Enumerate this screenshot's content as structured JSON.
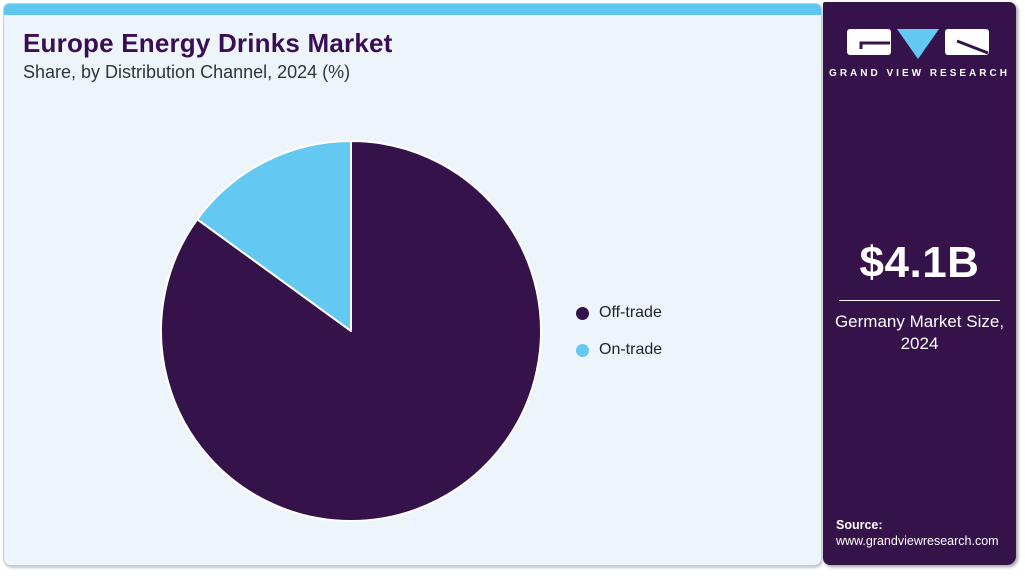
{
  "header": {
    "title": "Europe Energy Drinks Market",
    "subtitle": "Share, by Distribution Channel, 2024 (%)"
  },
  "chart_data": {
    "type": "pie",
    "title": "Europe Energy Drinks Market Share, by Distribution Channel, 2024 (%)",
    "unit": "%",
    "slices": [
      {
        "label": "Off-trade",
        "value": 85,
        "color": "#36124b"
      },
      {
        "label": "On-trade",
        "value": 15,
        "color": "#63c9f2"
      }
    ],
    "start_angle_deg": 0,
    "direction": "clockwise",
    "legend_position": "right",
    "data_labels": false
  },
  "sidebar": {
    "logo_text": "GRAND VIEW RESEARCH",
    "metric_value": "$4.1B",
    "metric_caption": "Germany Market Size, 2024",
    "source_label": "Source:",
    "source_url": "www.grandviewresearch.com"
  },
  "colors": {
    "accent_bar": "#5ec7f1",
    "card_bg": "#eef5fa",
    "card_border": "#c7ced4",
    "title": "#3a0e55",
    "subtitle": "#33343a",
    "sidebar_bg": "#36124b",
    "legend_text": "#1e2230",
    "pie_stroke": "#ffffff"
  }
}
